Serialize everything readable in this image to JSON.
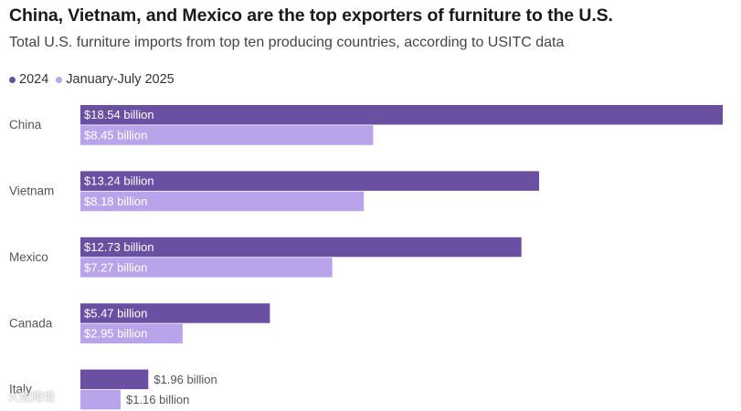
{
  "chart_data": {
    "type": "bar",
    "orientation": "horizontal",
    "title": "China, Vietnam, and Mexico are the top exporters of furniture to the U.S.",
    "subtitle": "Total U.S. furniture imports from top ten producing countries, according to USITC data",
    "categories": [
      "China",
      "Vietnam",
      "Mexico",
      "Canada",
      "Italy"
    ],
    "series": [
      {
        "name": "2024",
        "color": "#6b4fa3",
        "values": [
          18.54,
          13.24,
          12.73,
          5.47,
          1.96
        ],
        "labels": [
          "$18.54 billion",
          "$13.24 billion",
          "$12.73 billion",
          "$5.47 billion",
          "$1.96 billion"
        ]
      },
      {
        "name": "January-July 2025",
        "color": "#b9a4ec",
        "values": [
          8.45,
          8.18,
          7.27,
          2.95,
          1.16
        ],
        "labels": [
          "$8.45 billion",
          "$8.18 billion",
          "$7.27 billion",
          "$2.95 billion",
          "$1.16 billion"
        ]
      }
    ],
    "xlim": [
      0,
      18.54
    ],
    "legend_position": "top-left",
    "grid": false
  },
  "watermark": "大数跨境"
}
